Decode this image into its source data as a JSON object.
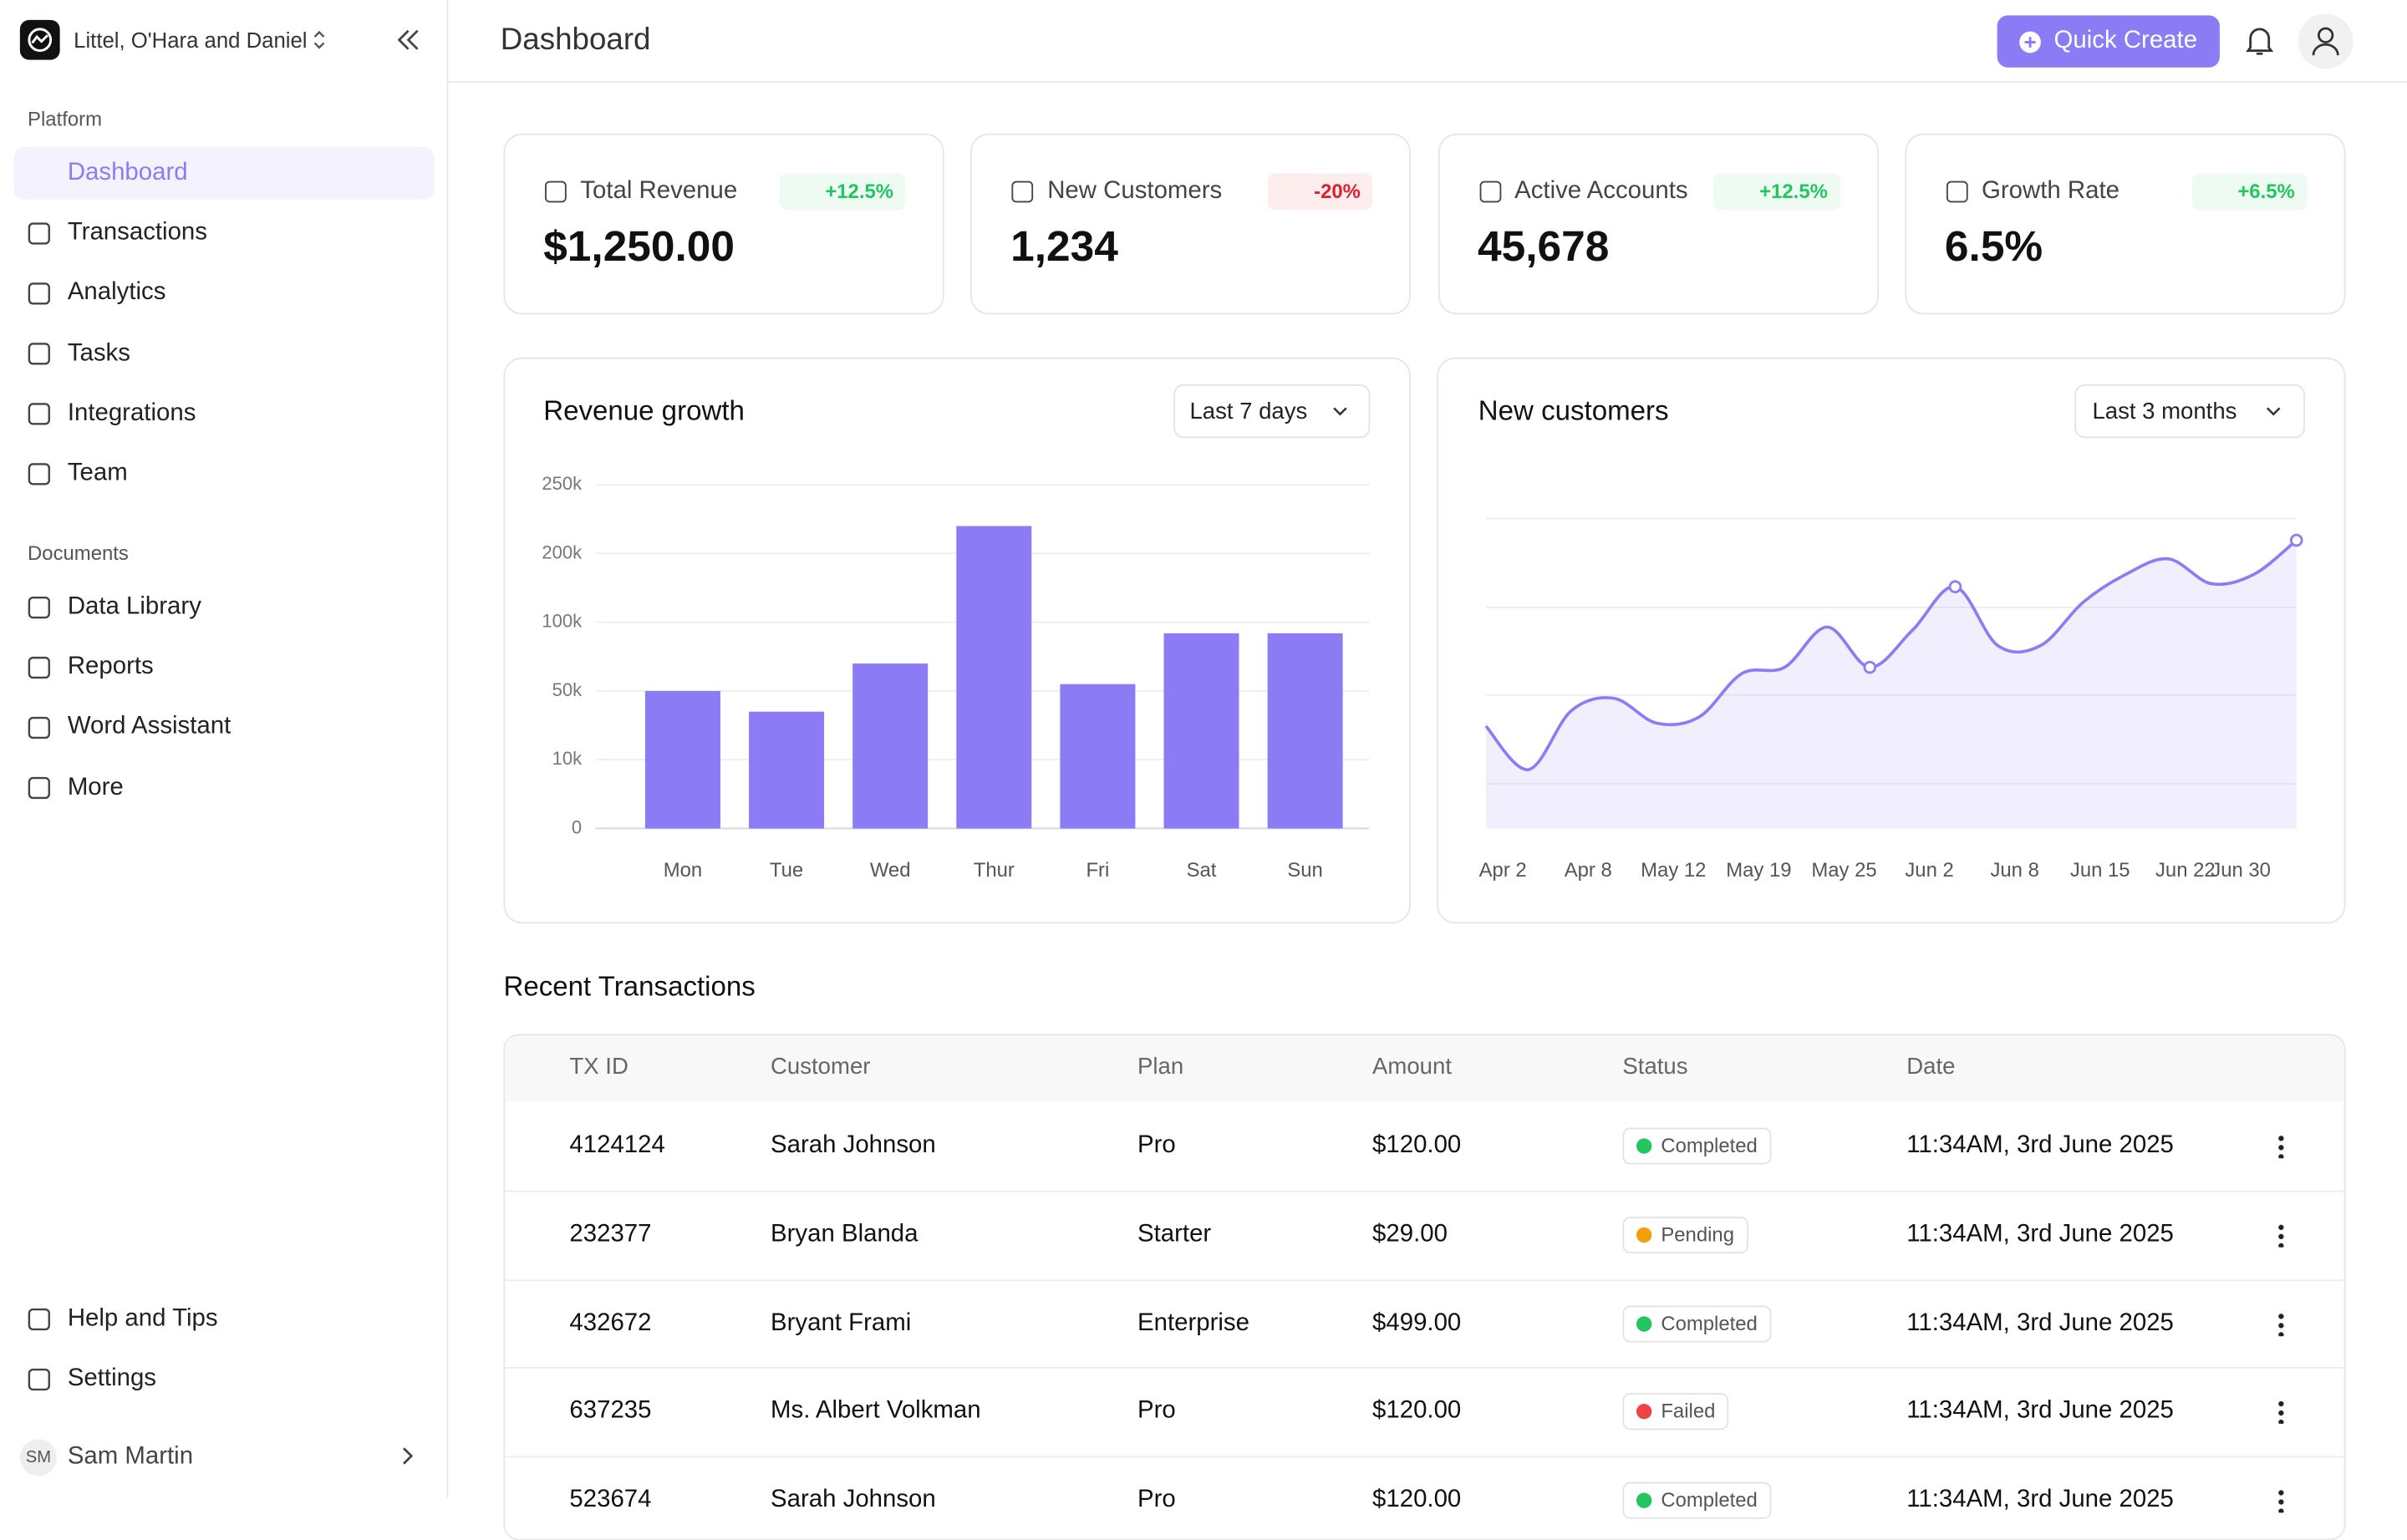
{
  "workspace": "Littel, O'Hara and Daniel",
  "sidebar": {
    "sections": [
      {
        "label": "Platform",
        "items": [
          "Dashboard",
          "Transactions",
          "Analytics",
          "Tasks",
          "Integrations",
          "Team"
        ]
      },
      {
        "label": "Documents",
        "items": [
          "Data Library",
          "Reports",
          "Word Assistant",
          "More"
        ]
      }
    ],
    "footer": [
      "Help and Tips",
      "Settings"
    ],
    "user": {
      "initials": "SM",
      "name": "Sam Martin"
    }
  },
  "header": {
    "title": "Dashboard",
    "action": "Quick Create"
  },
  "stats": [
    {
      "label": "Total Revenue",
      "value": "$1,250.00",
      "change": "+12.5%"
    },
    {
      "label": "New Customers",
      "value": "1,234",
      "change": "-20%"
    },
    {
      "label": "Active Accounts",
      "value": "45,678",
      "change": "+12.5%"
    },
    {
      "label": "Growth Rate",
      "value": "6.5%",
      "change": "+6.5%"
    }
  ],
  "chart_data": [
    {
      "type": "bar",
      "title": "Revenue growth",
      "range": "Last 7 days",
      "categories": [
        "Mon",
        "Tue",
        "Wed",
        "Thur",
        "Fri",
        "Sat",
        "Sun"
      ],
      "values": [
        50000,
        38000,
        70000,
        220000,
        55000,
        92000,
        92000
      ],
      "color": "#8b7cf6",
      "ylim": [
        0,
        250000
      ],
      "yticks": [
        0,
        {
          "value": 10000,
          "label": "10k"
        },
        {
          "value": 50000,
          "label": "50k"
        },
        {
          "value": 100000,
          "label": "100k"
        },
        {
          "value": 200000,
          "label": "200k"
        },
        {
          "value": 250000,
          "label": "250k"
        }
      ],
      "grid": true
    },
    {
      "type": "line",
      "title": "New customers",
      "range": "Last 3 months",
      "categories": [
        "Apr 2",
        null,
        "Apr 8",
        null,
        "May 12",
        null,
        "May 19",
        null,
        "May 25",
        null,
        "Jun 2",
        null,
        "Jun 8",
        null,
        "Jun 15",
        null,
        "Jun 22",
        null,
        "Jun 30",
        null
      ],
      "values": [
        33,
        19,
        38,
        42,
        34,
        36,
        50,
        52,
        65,
        52,
        64,
        78,
        59,
        59,
        73,
        82,
        87,
        79,
        82,
        93
      ],
      "color": "#8b7cf6",
      "ylim": [
        0,
        100
      ]
    }
  ],
  "table": {
    "title": "Recent Transactions",
    "columns": [
      "TX ID",
      "Customer",
      "Plan",
      "Amount",
      "Status",
      "Date"
    ],
    "rows": [
      [
        "4124124",
        "Sarah Johnson",
        "Pro",
        "$120.00",
        "Completed",
        "11:34AM, 3rd June 2025"
      ],
      [
        "232377",
        "Bryan Blanda",
        "Starter",
        "$29.00",
        "Pending",
        "11:34AM, 3rd June 2025"
      ],
      [
        "432672",
        "Bryant Frami",
        "Enterprise",
        "$499.00",
        "Completed",
        "11:34AM, 3rd June 2025"
      ],
      [
        "637235",
        "Ms. Albert Volkman",
        "Pro",
        "$120.00",
        "Failed",
        "11:34AM, 3rd June 2025"
      ],
      [
        "523674",
        "Sarah Johnson",
        "Pro",
        "$120.00",
        "Completed",
        "11:34AM, 3rd June 2025"
      ]
    ]
  }
}
